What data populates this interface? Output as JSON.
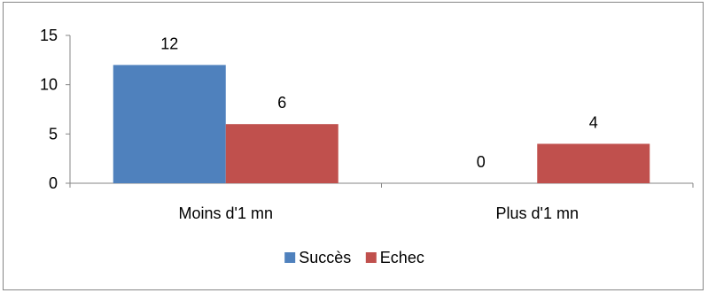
{
  "chart_data": {
    "type": "bar",
    "categories": [
      "Moins d'1 mn",
      "Plus d'1 mn"
    ],
    "series": [
      {
        "name": "Succès",
        "values": [
          12,
          0
        ],
        "color": "#4F81BD"
      },
      {
        "name": "Echec",
        "values": [
          6,
          4
        ],
        "color": "#C0504D"
      }
    ],
    "ylim": [
      0,
      15
    ],
    "yticks": [
      0,
      5,
      10,
      15
    ],
    "grid": false,
    "legend_position": "bottom",
    "data_labels": true
  }
}
